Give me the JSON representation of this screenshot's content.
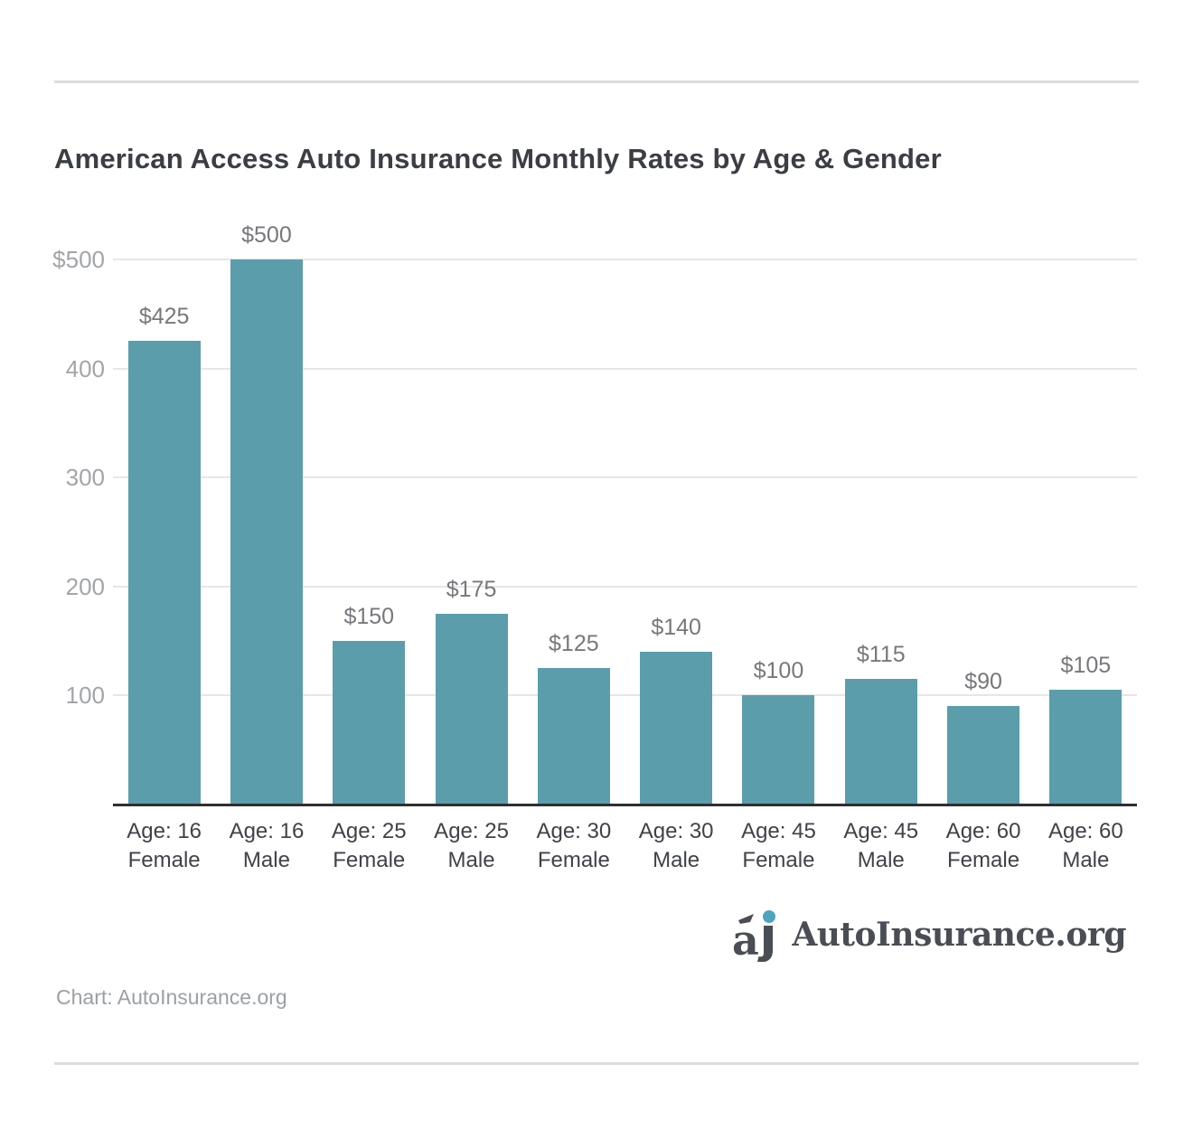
{
  "title": "American Access Auto Insurance Monthly Rates by Age & Gender",
  "chart_data": {
    "type": "bar",
    "title": "American Access Auto Insurance Monthly Rates by Age & Gender",
    "categories": [
      {
        "line1": "Age: 16",
        "line2": "Female"
      },
      {
        "line1": "Age: 16",
        "line2": "Male"
      },
      {
        "line1": "Age: 25",
        "line2": "Female"
      },
      {
        "line1": "Age: 25",
        "line2": "Male"
      },
      {
        "line1": "Age: 30",
        "line2": "Female"
      },
      {
        "line1": "Age: 30",
        "line2": "Male"
      },
      {
        "line1": "Age: 45",
        "line2": "Female"
      },
      {
        "line1": "Age: 45",
        "line2": "Male"
      },
      {
        "line1": "Age: 60",
        "line2": "Female"
      },
      {
        "line1": "Age: 60",
        "line2": "Male"
      }
    ],
    "values": [
      425,
      500,
      150,
      175,
      125,
      140,
      100,
      115,
      90,
      105
    ],
    "data_labels": [
      "$425",
      "$500",
      "$150",
      "$175",
      "$125",
      "$140",
      "$100",
      "$115",
      "$90",
      "$105"
    ],
    "y_ticks": [
      {
        "value": 500,
        "label": "$500"
      },
      {
        "value": 400,
        "label": "400"
      },
      {
        "value": 300,
        "label": "300"
      },
      {
        "value": 200,
        "label": "200"
      },
      {
        "value": 100,
        "label": "100"
      }
    ],
    "ylim": [
      0,
      500
    ],
    "xlabel": "",
    "ylabel": "",
    "grid": true,
    "legend_position": "none",
    "bar_color": "#5b9dab"
  },
  "colors": {
    "bar": "#5b9dab",
    "logo_dot": "#4da4be",
    "logo_text": "#4a4e54",
    "grid": "#e6e6e6",
    "axis_line": "#2e2f31"
  },
  "footer": {
    "caption": "Chart: AutoInsurance.org",
    "logo_text": "AutoInsurance.org"
  }
}
